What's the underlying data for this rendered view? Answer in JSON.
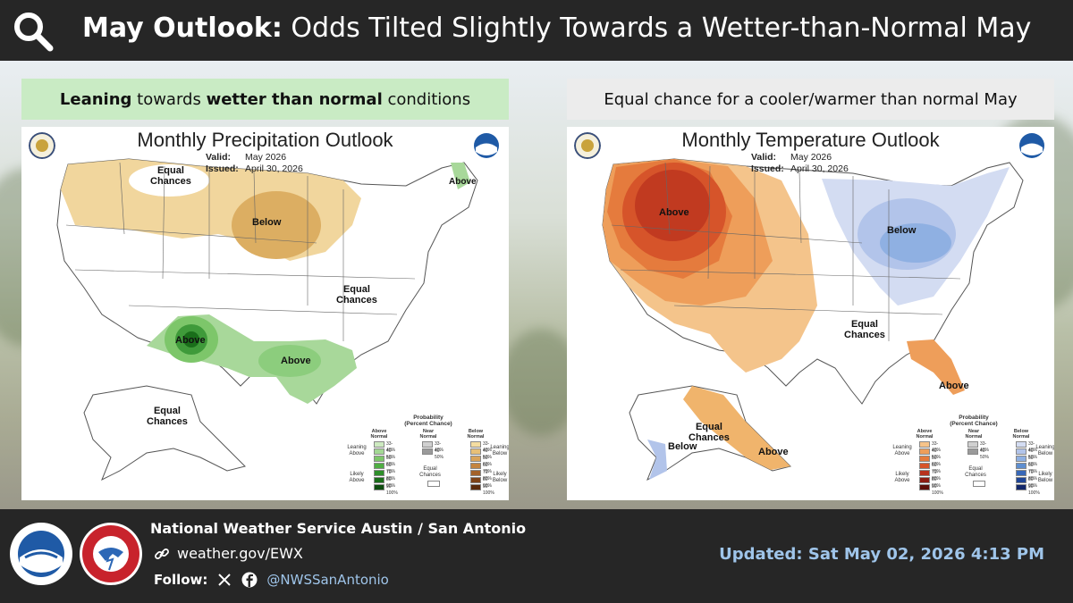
{
  "colors": {
    "header_bg": "#262626",
    "leaning_wetter_banner": "#c9ebc4",
    "equal_chance_banner": "#ececec",
    "updated_text": "#9fc5ea"
  },
  "header": {
    "icon": "search-icon",
    "title_bold": "May Outlook:",
    "title_rest": " Odds Tilted Slightly Towards a Wetter-than-Normal May"
  },
  "precip": {
    "banner_bold1": "Leaning",
    "banner_text1": " towards ",
    "banner_bold2": "wetter than normal",
    "banner_text2": " conditions",
    "map_title": "Monthly Precipitation Outlook",
    "valid_label": "Valid:",
    "valid_value": "May 2026",
    "issued_label": "Issued:",
    "issued_value": "April 30, 2026",
    "labels": {
      "equal_chances_nw": "Equal\nChances",
      "below": "Below",
      "above_ne": "Above",
      "equal_chances_e": "Equal\nChances",
      "above_sw": "Above",
      "above_tx": "Above",
      "equal_chances_ak": "Equal\nChances"
    },
    "legend": {
      "title": "Probability\n(Percent Chance)",
      "above_head": "Above\nNormal",
      "near_head": "Near\nNormal",
      "below_head": "Below\nNormal",
      "leaning_above": "Leaning\nAbove",
      "likely_above": "Likely\nAbove",
      "leaning_below": "Leaning\nBelow",
      "likely_below": "Likely\nBelow",
      "equal_chances": "Equal\nChances",
      "pcts": [
        "33-40%",
        "40-50%",
        "50-60%",
        "60-70%",
        "70-80%",
        "80-90%",
        "90-100%"
      ],
      "near_pcts": [
        "33-40%",
        "40-50%"
      ],
      "above_colors": [
        "#cdeac0",
        "#a3d894",
        "#7dc66a",
        "#4fae43",
        "#2e8f2a",
        "#1a6e1a",
        "#0e4d10"
      ],
      "below_colors": [
        "#f4dda1",
        "#e8c077",
        "#d9a35a",
        "#c48440",
        "#a3622a",
        "#7e4318",
        "#5a2a0c"
      ]
    }
  },
  "temp": {
    "banner_text": "Equal chance for a cooler/warmer than normal May",
    "map_title": "Monthly Temperature Outlook",
    "valid_label": "Valid:",
    "valid_value": "May 2026",
    "issued_label": "Issued:",
    "issued_value": "April 30, 2026",
    "labels": {
      "above_nw": "Above",
      "below_ne": "Below",
      "equal_chances_s": "Equal\nChances",
      "above_fl": "Above",
      "equal_chances_ak": "Equal\nChances",
      "below_ak": "Below",
      "above_ak": "Above"
    },
    "legend": {
      "title": "Probability\n(Percent Chance)",
      "above_head": "Above\nNormal",
      "near_head": "Near\nNormal",
      "below_head": "Below\nNormal",
      "leaning_above": "Leaning\nAbove",
      "likely_above": "Likely\nAbove",
      "leaning_below": "Leaning\nBelow",
      "likely_below": "Likely\nBelow",
      "equal_chances": "Equal\nChances",
      "pcts": [
        "33-40%",
        "40-50%",
        "50-60%",
        "60-70%",
        "70-80%",
        "80-90%",
        "90-100%"
      ],
      "near_pcts": [
        "33-40%",
        "40-50%"
      ],
      "above_colors": [
        "#f6c48a",
        "#ee9e5a",
        "#e57b3d",
        "#d6542a",
        "#b8321d",
        "#8e1d12",
        "#5e0f08"
      ],
      "below_colors": [
        "#d3dcf2",
        "#b2c4ea",
        "#8fb0e2",
        "#5f8fd0",
        "#3868b8",
        "#1f4596",
        "#12276a"
      ]
    }
  },
  "footer": {
    "office": "National Weather Service Austin / San Antonio",
    "site": "weather.gov/EWX",
    "follow_label": "Follow:",
    "handle": "@NWSSanAntonio",
    "updated": "Updated: Sat May 02, 2026 4:13 PM"
  }
}
